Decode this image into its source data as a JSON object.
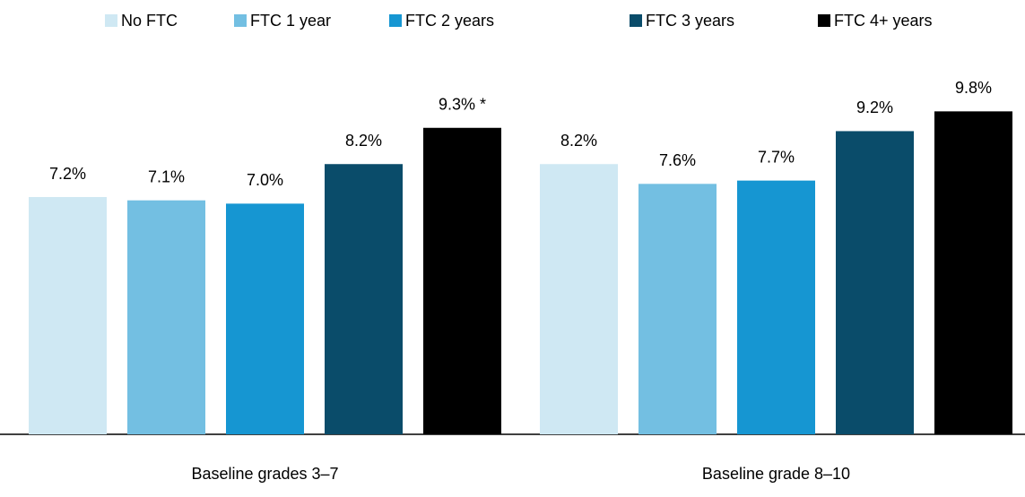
{
  "chart_data": {
    "type": "bar",
    "categories": [
      "Baseline grades 3–7",
      "Baseline grade 8–10"
    ],
    "series": [
      {
        "name": "No FTC",
        "color": "#cfe8f3",
        "values": [
          7.2,
          8.2
        ],
        "value_labels": [
          "7.2%",
          "8.2%"
        ]
      },
      {
        "name": "FTC 1 year",
        "color": "#73bfe2",
        "values": [
          7.1,
          7.6
        ],
        "value_labels": [
          "7.1%",
          "7.6%"
        ]
      },
      {
        "name": "FTC 2 years",
        "color": "#1696d2",
        "values": [
          7.0,
          7.7
        ],
        "value_labels": [
          "7.0%",
          "7.7%"
        ]
      },
      {
        "name": "FTC 3 years",
        "color": "#0a4c6a",
        "values": [
          8.2,
          9.2
        ],
        "value_labels": [
          "8.2%",
          "9.2%"
        ]
      },
      {
        "name": "FTC 4+ years",
        "color": "#000000",
        "values": [
          9.3,
          9.8
        ],
        "value_labels": [
          "9.3% *",
          "9.8%"
        ]
      }
    ],
    "ylim": [
      0,
      10
    ],
    "legend": "top"
  }
}
